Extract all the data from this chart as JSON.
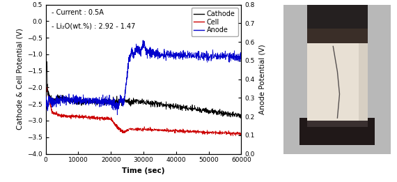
{
  "xlabel": "Time (sec)",
  "ylabel_left": "Cathode & Cell Potential (V)",
  "ylabel_right": "Anode Potential (V)",
  "xlim": [
    0,
    60000
  ],
  "ylim_left": [
    -4.0,
    0.5
  ],
  "ylim_right": [
    0.0,
    0.8
  ],
  "xticks": [
    0,
    10000,
    20000,
    30000,
    40000,
    50000,
    60000
  ],
  "xtick_labels": [
    "0",
    "10000",
    "20000",
    "30000",
    "40000",
    "50000",
    "60000"
  ],
  "yticks_left": [
    0.5,
    0.0,
    -0.5,
    -1.0,
    -1.5,
    -2.0,
    -2.5,
    -3.0,
    -3.5,
    -4.0
  ],
  "yticks_right": [
    0.0,
    0.1,
    0.2,
    0.3,
    0.4,
    0.5,
    0.6,
    0.7,
    0.8
  ],
  "annotation_line1": "- Current : 0.5A",
  "annotation_line2": "- Li₂O(wt.%) : 2.92 - 1.47",
  "legend_labels": [
    "Cathode",
    "Cell",
    "Anode"
  ],
  "cathode_color": "#000000",
  "cell_color": "#cc0000",
  "anode_color": "#0000cc",
  "bg_color": "#ffffff",
  "font_size_ticks": 6.5,
  "font_size_labels": 7.5,
  "font_size_annot": 7.0,
  "font_size_legend": 7.0,
  "img_bg_color": "#c8c8c8",
  "img_top_dark": "#282020",
  "img_body_color": "#e8e2d8",
  "img_bottom_dark": "#201818",
  "img_mid_dark": "#504040"
}
